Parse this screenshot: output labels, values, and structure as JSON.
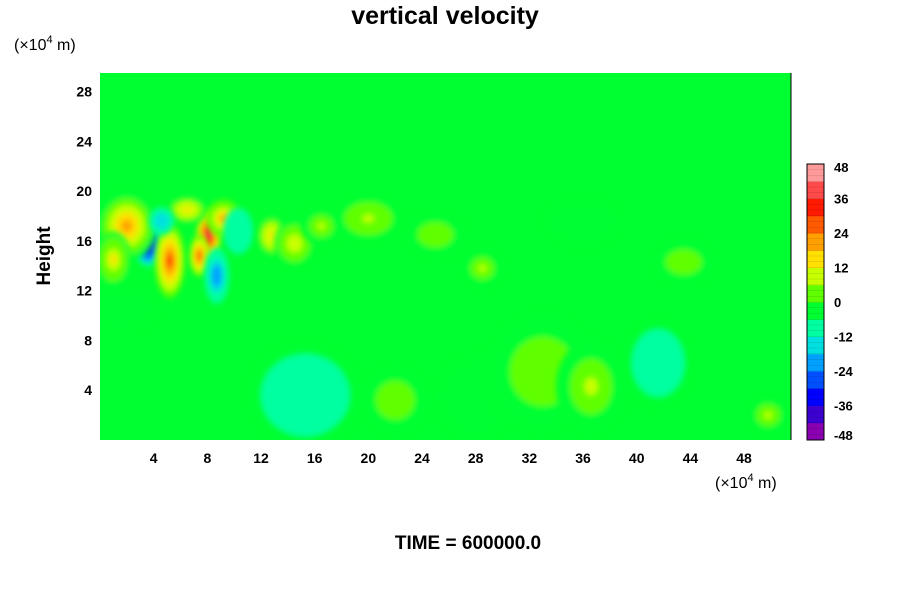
{
  "chart_data": {
    "type": "heatmap",
    "title": "vertical velocity",
    "ylabel": "Height",
    "xlabel": "",
    "x_unit_base": "(×10",
    "x_unit_exp": "4",
    "x_unit_tail": " m)",
    "y_unit_base": "(×10",
    "y_unit_exp": "4",
    "y_unit_tail": " m)",
    "xlim": [
      0,
      51.5
    ],
    "ylim": [
      0,
      29.5
    ],
    "x_ticks": [
      4,
      8,
      12,
      16,
      20,
      24,
      28,
      32,
      36,
      40,
      44,
      48
    ],
    "y_ticks": [
      4,
      8,
      12,
      16,
      20,
      24,
      28
    ],
    "background_value": -5,
    "colorbar": {
      "min": -48,
      "max": 48,
      "ticks": [
        48,
        36,
        24,
        12,
        0,
        -12,
        -24,
        -36,
        -48
      ],
      "colors": [
        "#8a00b0",
        "#3c00d0",
        "#0000ff",
        "#0050ff",
        "#00a0ff",
        "#00e0e0",
        "#00ffa0",
        "#00ff30",
        "#60ff00",
        "#c8ff00",
        "#ffe000",
        "#ffa000",
        "#ff5a00",
        "#ff1a00",
        "#ff4a4a",
        "#ff9a9a"
      ]
    },
    "features": [
      {
        "x": 3.6,
        "y": 15.8,
        "sx": 0.6,
        "sy": 1.0,
        "value": -38
      },
      {
        "x": 5.2,
        "y": 14.4,
        "sx": 0.6,
        "sy": 1.6,
        "value": 30
      },
      {
        "x": 8.1,
        "y": 16.5,
        "sx": 0.5,
        "sy": 1.1,
        "value": 40
      },
      {
        "x": 7.4,
        "y": 14.8,
        "sx": 0.4,
        "sy": 0.9,
        "value": 30
      },
      {
        "x": 2.0,
        "y": 17.2,
        "sx": 1.2,
        "sy": 1.5,
        "value": 18
      },
      {
        "x": 1.0,
        "y": 14.5,
        "sx": 0.7,
        "sy": 1.2,
        "value": 12
      },
      {
        "x": 6.5,
        "y": 18.5,
        "sx": 0.8,
        "sy": 0.6,
        "value": 15
      },
      {
        "x": 9.2,
        "y": 17.8,
        "sx": 0.7,
        "sy": 0.8,
        "value": 22
      },
      {
        "x": 8.7,
        "y": 13.2,
        "sx": 0.5,
        "sy": 1.2,
        "value": -22
      },
      {
        "x": 4.6,
        "y": 17.6,
        "sx": 0.5,
        "sy": 0.6,
        "value": -18
      },
      {
        "x": 10.3,
        "y": 16.8,
        "sx": 0.6,
        "sy": 1.0,
        "value": -12
      },
      {
        "x": 12.8,
        "y": 16.4,
        "sx": 0.6,
        "sy": 0.9,
        "value": 14
      },
      {
        "x": 14.5,
        "y": 15.8,
        "sx": 0.8,
        "sy": 1.0,
        "value": 9
      },
      {
        "x": 16.5,
        "y": 17.2,
        "sx": 0.8,
        "sy": 0.8,
        "value": 6
      },
      {
        "x": 20.0,
        "y": 17.8,
        "sx": 1.2,
        "sy": 0.9,
        "value": 8
      },
      {
        "x": 25.0,
        "y": 16.5,
        "sx": 1.2,
        "sy": 0.9,
        "value": 5
      },
      {
        "x": 28.5,
        "y": 13.8,
        "sx": 0.8,
        "sy": 0.8,
        "value": 6
      },
      {
        "x": 36.0,
        "y": 17.5,
        "sx": 1.5,
        "sy": 1.0,
        "value": -4
      },
      {
        "x": 43.5,
        "y": 14.3,
        "sx": 1.2,
        "sy": 0.9,
        "value": 4
      },
      {
        "x": 1.5,
        "y": 10.5,
        "sx": 1.5,
        "sy": 1.0,
        "value": -3
      },
      {
        "x": 15.3,
        "y": 3.6,
        "sx": 2.2,
        "sy": 2.2,
        "value": -10
      },
      {
        "x": 22.0,
        "y": 3.2,
        "sx": 1.3,
        "sy": 1.4,
        "value": 5
      },
      {
        "x": 28.0,
        "y": 3.4,
        "sx": 1.5,
        "sy": 1.8,
        "value": -4
      },
      {
        "x": 33.0,
        "y": 5.5,
        "sx": 2.2,
        "sy": 2.5,
        "value": 4
      },
      {
        "x": 36.6,
        "y": 4.3,
        "sx": 1.4,
        "sy": 2.0,
        "value": 7
      },
      {
        "x": 41.6,
        "y": 6.2,
        "sx": 1.3,
        "sy": 1.8,
        "value": -8
      },
      {
        "x": 49.8,
        "y": 2.0,
        "sx": 0.8,
        "sy": 0.8,
        "value": 6
      }
    ]
  },
  "footer": {
    "time_label": "TIME = 600000.0"
  }
}
